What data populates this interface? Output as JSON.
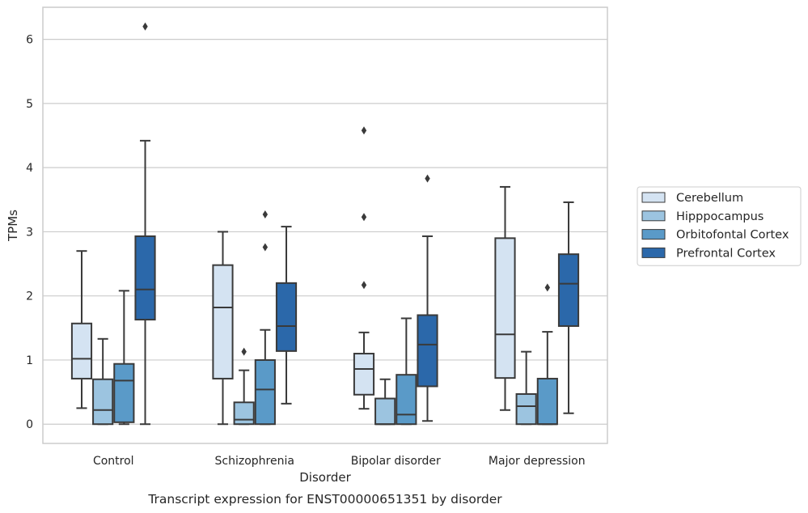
{
  "chart_data": {
    "type": "box",
    "caption": "Transcript expression for ENST00000651351 by disorder",
    "xlabel": "Disorder",
    "ylabel": "TPMs",
    "ylim": [
      -0.3,
      6.5
    ],
    "yticks": [
      0,
      1,
      2,
      3,
      4,
      5,
      6
    ],
    "grid": "horizontal",
    "legend_position": "right",
    "categories": [
      "Control",
      "Schizophrenia",
      "Bipolar disorder",
      "Major depression"
    ],
    "series": [
      {
        "name": "Cerebellum",
        "color": "#d4e3f2",
        "boxes": [
          {
            "whislo": 0.25,
            "q1": 0.71,
            "med": 1.02,
            "q3": 1.57,
            "whishi": 2.7,
            "fliers": []
          },
          {
            "whislo": 0.0,
            "q1": 0.71,
            "med": 1.82,
            "q3": 2.48,
            "whishi": 3.0,
            "fliers": []
          },
          {
            "whislo": 0.24,
            "q1": 0.46,
            "med": 0.86,
            "q3": 1.1,
            "whishi": 1.43,
            "fliers": [
              2.17,
              3.23,
              4.58
            ]
          },
          {
            "whislo": 0.22,
            "q1": 0.72,
            "med": 1.4,
            "q3": 2.9,
            "whishi": 3.7,
            "fliers": []
          }
        ]
      },
      {
        "name": "Hipppocampus",
        "color": "#9cc4e0",
        "boxes": [
          {
            "whislo": 0.0,
            "q1": 0.0,
            "med": 0.22,
            "q3": 0.7,
            "whishi": 1.33,
            "fliers": []
          },
          {
            "whislo": 0.0,
            "q1": 0.0,
            "med": 0.07,
            "q3": 0.34,
            "whishi": 0.84,
            "fliers": [
              1.13
            ]
          },
          {
            "whislo": 0.0,
            "q1": 0.0,
            "med": 0.0,
            "q3": 0.4,
            "whishi": 0.7,
            "fliers": []
          },
          {
            "whislo": 0.0,
            "q1": 0.0,
            "med": 0.28,
            "q3": 0.47,
            "whishi": 1.13,
            "fliers": []
          }
        ]
      },
      {
        "name": "Orbitofontal Cortex",
        "color": "#5a9ac8",
        "boxes": [
          {
            "whislo": 0.0,
            "q1": 0.03,
            "med": 0.68,
            "q3": 0.94,
            "whishi": 2.08,
            "fliers": []
          },
          {
            "whislo": 0.0,
            "q1": 0.0,
            "med": 0.54,
            "q3": 1.0,
            "whishi": 1.47,
            "fliers": [
              2.76,
              3.27
            ]
          },
          {
            "whislo": 0.0,
            "q1": 0.0,
            "med": 0.15,
            "q3": 0.77,
            "whishi": 1.65,
            "fliers": []
          },
          {
            "whislo": 0.0,
            "q1": 0.0,
            "med": 0.0,
            "q3": 0.71,
            "whishi": 1.44,
            "fliers": [
              2.13
            ]
          }
        ]
      },
      {
        "name": "Prefrontal Cortex",
        "color": "#2b68aa",
        "boxes": [
          {
            "whislo": 0.0,
            "q1": 1.63,
            "med": 2.1,
            "q3": 2.93,
            "whishi": 4.42,
            "fliers": [
              6.2
            ]
          },
          {
            "whislo": 0.32,
            "q1": 1.14,
            "med": 1.53,
            "q3": 2.2,
            "whishi": 3.08,
            "fliers": []
          },
          {
            "whislo": 0.05,
            "q1": 0.59,
            "med": 1.24,
            "q3": 1.7,
            "whishi": 2.93,
            "fliers": [
              3.83
            ]
          },
          {
            "whislo": 0.17,
            "q1": 1.53,
            "med": 2.19,
            "q3": 2.65,
            "whishi": 3.46,
            "fliers": []
          }
        ]
      }
    ]
  }
}
